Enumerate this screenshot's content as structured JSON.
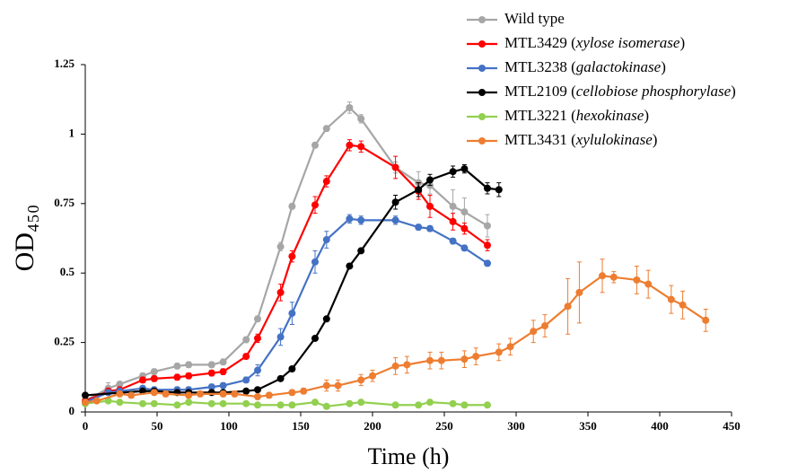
{
  "chart_data": {
    "type": "line",
    "x_label": "Time (h)",
    "y_label": "OD₄₅₀",
    "xlim": [
      0,
      450
    ],
    "xticks": [
      0,
      50,
      100,
      150,
      200,
      250,
      300,
      350,
      400,
      450
    ],
    "ylim": [
      0,
      1.25
    ],
    "yticks": [
      0,
      0.25,
      0.5,
      0.75,
      1,
      1.25
    ],
    "grid": false,
    "legend": "top-right",
    "series": [
      {
        "name": "Wild type",
        "color": "#a6a6a6",
        "x": [
          0,
          16,
          24,
          40,
          48,
          64,
          72,
          88,
          96,
          112,
          120,
          136,
          144,
          160,
          168,
          184,
          192,
          216,
          232,
          240,
          256,
          264,
          280
        ],
        "values": [
          0.04,
          0.085,
          0.1,
          0.13,
          0.145,
          0.165,
          0.17,
          0.17,
          0.18,
          0.26,
          0.335,
          0.595,
          0.74,
          0.96,
          1.02,
          1.095,
          1.055,
          0.88,
          0.825,
          0.815,
          0.74,
          0.72,
          0.67
        ],
        "errors": [
          0.005,
          0.02,
          0.01,
          0.01,
          0.01,
          0.01,
          0.01,
          0.01,
          0.01,
          0.01,
          0.01,
          0.015,
          0.01,
          0.01,
          0.01,
          0.02,
          0.015,
          0.02,
          0.04,
          0.03,
          0.06,
          0.05,
          0.04
        ]
      },
      {
        "name": "MTL3429 (xylose isomerase)",
        "color": "#ff0000",
        "x": [
          0,
          16,
          24,
          40,
          48,
          64,
          72,
          88,
          96,
          112,
          120,
          136,
          144,
          160,
          168,
          184,
          192,
          216,
          232,
          240,
          256,
          264,
          280
        ],
        "values": [
          0.04,
          0.075,
          0.08,
          0.115,
          0.12,
          0.125,
          0.13,
          0.14,
          0.145,
          0.2,
          0.265,
          0.43,
          0.56,
          0.745,
          0.83,
          0.96,
          0.955,
          0.88,
          0.795,
          0.74,
          0.685,
          0.66,
          0.6
        ],
        "errors": [
          0.005,
          0.01,
          0.01,
          0.01,
          0.01,
          0.01,
          0.01,
          0.01,
          0.01,
          0.01,
          0.015,
          0.03,
          0.02,
          0.03,
          0.02,
          0.02,
          0.02,
          0.04,
          0.03,
          0.04,
          0.03,
          0.02,
          0.02
        ]
      },
      {
        "name": "MTL3238 (galactokinase)",
        "color": "#4472c4",
        "x": [
          0,
          16,
          24,
          40,
          48,
          64,
          72,
          88,
          96,
          112,
          120,
          136,
          144,
          160,
          168,
          184,
          192,
          216,
          232,
          240,
          256,
          264,
          280
        ],
        "values": [
          0.035,
          0.07,
          0.075,
          0.085,
          0.08,
          0.08,
          0.08,
          0.09,
          0.095,
          0.115,
          0.15,
          0.27,
          0.355,
          0.54,
          0.62,
          0.695,
          0.69,
          0.69,
          0.665,
          0.66,
          0.615,
          0.59,
          0.535
        ],
        "errors": [
          0.005,
          0.01,
          0.01,
          0.01,
          0.01,
          0.01,
          0.01,
          0.01,
          0.01,
          0.01,
          0.02,
          0.03,
          0.04,
          0.04,
          0.03,
          0.015,
          0.015,
          0.015,
          0.01,
          0.01,
          0.01,
          0.01,
          0.01
        ]
      },
      {
        "name": "MTL2109 (cellobiose phosphorylase)",
        "color": "#000000",
        "x": [
          0,
          40,
          48,
          64,
          72,
          88,
          96,
          112,
          120,
          136,
          144,
          160,
          168,
          184,
          192,
          216,
          232,
          240,
          256,
          264,
          280,
          288
        ],
        "values": [
          0.06,
          0.075,
          0.075,
          0.07,
          0.07,
          0.07,
          0.07,
          0.075,
          0.08,
          0.12,
          0.155,
          0.265,
          0.335,
          0.525,
          0.58,
          0.755,
          0.8,
          0.835,
          0.865,
          0.875,
          0.805,
          0.8
        ],
        "errors": [
          0.005,
          0.005,
          0.005,
          0.005,
          0.005,
          0.005,
          0.005,
          0.005,
          0.005,
          0.005,
          0.005,
          0.005,
          0.005,
          0.005,
          0.005,
          0.025,
          0.025,
          0.02,
          0.02,
          0.015,
          0.02,
          0.025
        ]
      },
      {
        "name": "MTL3221 (hexokinase)",
        "color": "#92d050",
        "x": [
          0,
          16,
          24,
          40,
          48,
          64,
          72,
          88,
          96,
          112,
          120,
          136,
          144,
          160,
          168,
          184,
          192,
          216,
          232,
          240,
          256,
          264,
          280
        ],
        "values": [
          0.03,
          0.04,
          0.035,
          0.03,
          0.03,
          0.025,
          0.035,
          0.03,
          0.03,
          0.03,
          0.025,
          0.025,
          0.025,
          0.035,
          0.02,
          0.03,
          0.035,
          0.025,
          0.025,
          0.035,
          0.03,
          0.025,
          0.025
        ],
        "errors": [
          0.005,
          0.005,
          0.005,
          0.005,
          0.005,
          0.005,
          0.005,
          0.005,
          0.005,
          0.005,
          0.005,
          0.005,
          0.005,
          0.005,
          0.005,
          0.005,
          0.005,
          0.005,
          0.005,
          0.005,
          0.005,
          0.005,
          0.005
        ]
      },
      {
        "name": "MTL3431 (xylulokinase)",
        "color": "#ed7d31",
        "x": [
          0,
          8,
          24,
          32,
          48,
          56,
          72,
          80,
          96,
          104,
          120,
          128,
          144,
          152,
          168,
          176,
          192,
          200,
          216,
          224,
          240,
          248,
          264,
          272,
          288,
          296,
          312,
          320,
          336,
          344,
          360,
          368,
          384,
          392,
          408,
          416,
          432
        ],
        "values": [
          0.035,
          0.04,
          0.065,
          0.06,
          0.07,
          0.065,
          0.06,
          0.065,
          0.065,
          0.065,
          0.055,
          0.06,
          0.07,
          0.075,
          0.095,
          0.095,
          0.115,
          0.13,
          0.165,
          0.17,
          0.185,
          0.185,
          0.19,
          0.2,
          0.215,
          0.235,
          0.29,
          0.31,
          0.38,
          0.43,
          0.49,
          0.485,
          0.475,
          0.46,
          0.405,
          0.385,
          0.33
        ],
        "errors": [
          0.005,
          0.005,
          0.01,
          0.01,
          0.01,
          0.01,
          0.01,
          0.01,
          0.01,
          0.01,
          0.01,
          0.01,
          0.01,
          0.01,
          0.02,
          0.02,
          0.02,
          0.02,
          0.03,
          0.03,
          0.03,
          0.03,
          0.03,
          0.03,
          0.03,
          0.03,
          0.04,
          0.04,
          0.1,
          0.11,
          0.06,
          0.02,
          0.05,
          0.05,
          0.05,
          0.05,
          0.04
        ]
      }
    ]
  }
}
